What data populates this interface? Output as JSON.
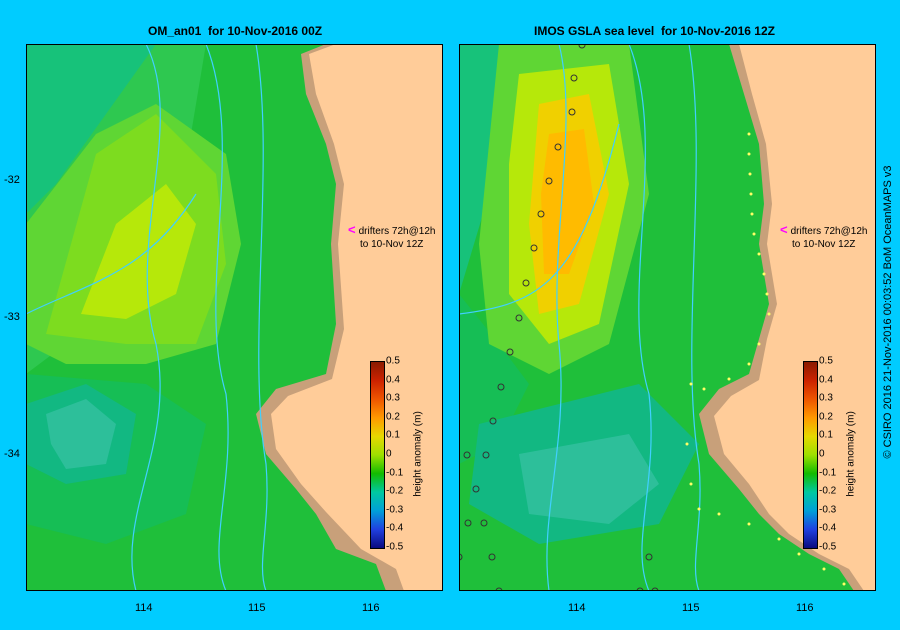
{
  "left_panel": {
    "title": "OM_an01  for 10-Nov-2016 00Z",
    "drifter_note_line1": "drifters 72h@12h",
    "drifter_note_line2": "to 10-Nov 12Z"
  },
  "right_panel": {
    "title": "IMOS GSLA sea level  for 10-Nov-2016 12Z",
    "drifter_note_line1": "drifters 72h@12h",
    "drifter_note_line2": "to 10-Nov 12Z"
  },
  "axes": {
    "lat_labels": [
      "-32",
      "-33",
      "-34"
    ],
    "lon_labels": [
      "114",
      "115",
      "116"
    ]
  },
  "colorbar": {
    "label": "height anomaly (m)",
    "ticks": [
      "0.5",
      "0.4",
      "0.3",
      "0.2",
      "0.1",
      "0",
      "-0.1",
      "-0.2",
      "-0.3",
      "-0.4",
      "-0.5"
    ]
  },
  "credit": "© CSIRO 2016   21-Nov-2016 00:03:52 BoM OceanMAPS v3",
  "colors": {
    "background": "#00ccff",
    "land": "#ffcc99",
    "shelf": "#c8a07a",
    "drifter_arrow": "#ff00ff"
  }
}
